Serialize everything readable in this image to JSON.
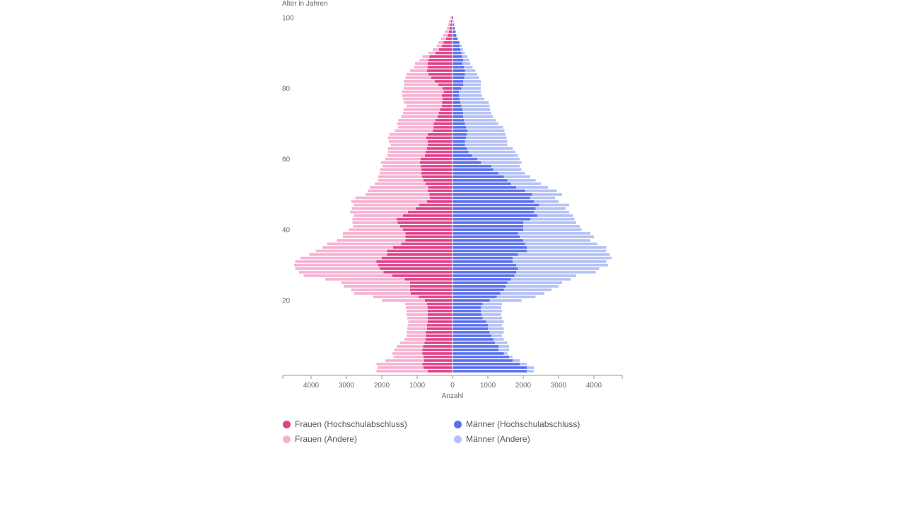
{
  "chart_data": {
    "type": "bar",
    "orientation": "horizontal-population-pyramid",
    "ylabel": "Alter in Jahren",
    "xlabel": "Anzahl",
    "x_ticks": [
      "4000",
      "3000",
      "2000",
      "1000",
      "0",
      "1000",
      "2000",
      "3000",
      "4000"
    ],
    "y_ticks": [
      "20",
      "40",
      "60",
      "80",
      "100"
    ],
    "age_range": [
      0,
      100
    ],
    "xlim": [
      -4800,
      4800
    ],
    "stacked": true,
    "ages": [
      0,
      1,
      2,
      3,
      4,
      5,
      6,
      7,
      8,
      9,
      10,
      11,
      12,
      13,
      14,
      15,
      16,
      17,
      18,
      19,
      20,
      21,
      22,
      23,
      24,
      25,
      26,
      27,
      28,
      29,
      30,
      31,
      32,
      33,
      34,
      35,
      36,
      37,
      38,
      39,
      40,
      41,
      42,
      43,
      44,
      45,
      46,
      47,
      48,
      49,
      50,
      51,
      52,
      53,
      54,
      55,
      56,
      57,
      58,
      59,
      60,
      61,
      62,
      63,
      64,
      65,
      66,
      67,
      68,
      69,
      70,
      71,
      72,
      73,
      74,
      75,
      76,
      77,
      78,
      79,
      80,
      81,
      82,
      83,
      84,
      85,
      86,
      87,
      88,
      89,
      90,
      91,
      92,
      93,
      94,
      95,
      96,
      97,
      98,
      99,
      100
    ],
    "series": [
      {
        "name": "Frauen (Hochschulabschluss)",
        "side": "left",
        "color": "#e0408a",
        "values": [
          700,
          820,
          850,
          800,
          820,
          850,
          850,
          830,
          790,
          760,
          750,
          750,
          720,
          720,
          700,
          700,
          700,
          700,
          700,
          720,
          780,
          950,
          1180,
          1200,
          1200,
          1200,
          1350,
          1700,
          1950,
          2050,
          2100,
          2150,
          2000,
          1850,
          1850,
          1680,
          1450,
          1330,
          1330,
          1330,
          1400,
          1480,
          1550,
          1580,
          1400,
          1260,
          1040,
          940,
          720,
          640,
          650,
          700,
          680,
          760,
          820,
          860,
          880,
          880,
          900,
          920,
          900,
          780,
          760,
          720,
          700,
          700,
          740,
          700,
          560,
          530,
          530,
          480,
          420,
          390,
          350,
          300,
          290,
          280,
          300,
          250,
          280,
          400,
          500,
          600,
          680,
          720,
          700,
          700,
          680,
          650,
          480,
          380,
          300,
          250,
          180,
          130,
          100,
          80,
          60,
          40,
          20
        ]
      },
      {
        "name": "Frauen (Andere)",
        "side": "left",
        "color": "#f7b0d2",
        "values": [
          1450,
          1300,
          1300,
          1100,
          850,
          850,
          800,
          750,
          700,
          600,
          550,
          550,
          560,
          550,
          550,
          580,
          600,
          600,
          620,
          620,
          1220,
          1300,
          1600,
          1670,
          1880,
          1950,
          2250,
          2510,
          2390,
          2400,
          2380,
          2300,
          2300,
          2200,
          2020,
          2000,
          2100,
          1940,
          1770,
          1770,
          1530,
          1330,
          1280,
          1250,
          1400,
          1640,
          1810,
          1860,
          2140,
          2110,
          1810,
          1700,
          1660,
          1440,
          1290,
          1240,
          1180,
          1170,
          1080,
          1100,
          1000,
          1060,
          1060,
          1110,
          1050,
          1100,
          1090,
          1080,
          1080,
          1010,
          1030,
          1050,
          1030,
          1010,
          1030,
          1000,
          1080,
          1120,
          1120,
          1180,
          1100,
          960,
          880,
          730,
          620,
          480,
          380,
          360,
          250,
          200,
          200,
          180,
          150,
          150,
          140,
          140,
          120,
          80,
          70,
          60,
          40
        ]
      },
      {
        "name": "Männer (Hochschulabschluss)",
        "side": "right",
        "color": "#5a6fee",
        "values": [
          2100,
          2100,
          1900,
          1700,
          1600,
          1450,
          1300,
          1300,
          1200,
          1150,
          1100,
          1050,
          1000,
          1000,
          950,
          850,
          820,
          800,
          800,
          850,
          1050,
          1250,
          1350,
          1450,
          1500,
          1550,
          1650,
          1750,
          1800,
          1850,
          1800,
          1700,
          1700,
          1850,
          2100,
          2100,
          2050,
          2000,
          1900,
          1850,
          2000,
          2000,
          2000,
          2200,
          2400,
          2300,
          2350,
          2450,
          2300,
          2200,
          2250,
          2050,
          1800,
          1650,
          1550,
          1450,
          1300,
          1150,
          1100,
          800,
          700,
          550,
          450,
          400,
          350,
          350,
          380,
          400,
          420,
          380,
          350,
          320,
          300,
          300,
          280,
          250,
          220,
          200,
          180,
          180,
          250,
          300,
          300,
          330,
          350,
          350,
          320,
          280,
          300,
          270,
          250,
          220,
          200,
          180,
          130,
          100,
          80,
          60,
          40,
          20,
          10
        ]
      },
      {
        "name": "Männer (Andere)",
        "side": "right",
        "color": "#b3c0f7",
        "values": [
          200,
          200,
          200,
          200,
          100,
          100,
          300,
          300,
          350,
          300,
          300,
          400,
          450,
          400,
          500,
          550,
          550,
          600,
          580,
          550,
          900,
          1100,
          1250,
          1350,
          1500,
          1550,
          1700,
          1750,
          2250,
          2300,
          2600,
          2650,
          2800,
          2600,
          2250,
          2250,
          2050,
          1900,
          2100,
          2050,
          1650,
          1600,
          1500,
          1250,
          1000,
          1000,
          850,
          850,
          700,
          700,
          850,
          900,
          900,
          850,
          800,
          750,
          750,
          800,
          800,
          1150,
          1200,
          1300,
          1330,
          1300,
          1200,
          1200,
          1150,
          1100,
          1050,
          1050,
          950,
          900,
          850,
          800,
          780,
          800,
          800,
          700,
          650,
          620,
          550,
          500,
          500,
          420,
          350,
          300,
          250,
          220,
          180,
          150,
          100,
          80,
          60,
          40,
          30,
          20,
          20,
          10,
          10,
          10,
          10
        ]
      }
    ],
    "legend_position": "bottom",
    "grid": false
  },
  "legend": {
    "items": [
      {
        "label": "Frauen (Hochschulabschluss)",
        "color": "#e0408a"
      },
      {
        "label": "Männer (Hochschulabschluss)",
        "color": "#5a6fee"
      },
      {
        "label": "Frauen (Andere)",
        "color": "#f7b0d2"
      },
      {
        "label": "Männer (Andere)",
        "color": "#b3c0f7"
      }
    ]
  }
}
